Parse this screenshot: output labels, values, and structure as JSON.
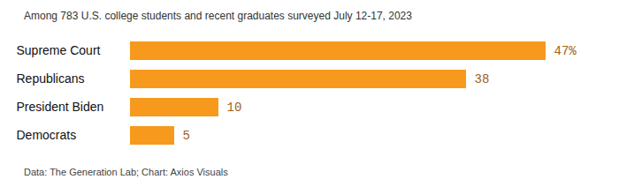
{
  "chart_data": {
    "type": "bar",
    "orientation": "horizontal",
    "subtitle": "Among 783 U.S. college students and recent graduates surveyed July 12-17, 2023",
    "caption": "Data: The Generation Lab; Chart: Axios Visuals",
    "categories": [
      "Supreme Court",
      "Republicans",
      "President Biden",
      "Democrats"
    ],
    "values": [
      47,
      38,
      10,
      5
    ],
    "value_labels": [
      "47%",
      "38",
      "10",
      "5"
    ],
    "color": "#f7991c",
    "xlim": [
      0,
      47
    ],
    "data_labels": true,
    "tick_labels": "y"
  }
}
